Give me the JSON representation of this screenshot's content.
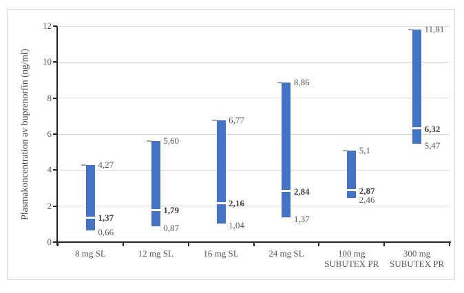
{
  "chart_data": {
    "type": "bar",
    "subtype": "floating-range-bars-min-median-max",
    "title": "",
    "xlabel": "",
    "ylabel": "Plasmakoncentration av buprenorfin (ng/ml)",
    "ylim": [
      0,
      12
    ],
    "yticks": [
      0,
      2,
      4,
      6,
      8,
      10,
      12
    ],
    "ytick_labels": [
      "0",
      "2",
      "4",
      "6",
      "8",
      "10",
      "12"
    ],
    "grid": "horizontal gridlines on",
    "legend_position": "none",
    "decimal_separator": ",",
    "categories": [
      "8 mg SL",
      "12 mg SL",
      "16 mg SL",
      "24 mg SL",
      "100 mg SUBUTEX PR",
      "300 mg SUBUTEX PR"
    ],
    "category_lines": [
      [
        "8 mg SL"
      ],
      [
        "12 mg SL"
      ],
      [
        "16 mg SL"
      ],
      [
        "24 mg SL"
      ],
      [
        "100 mg",
        "SUBUTEX PR"
      ],
      [
        "300 mg",
        "SUBUTEX PR"
      ]
    ],
    "bars": [
      {
        "category": "8 mg SL",
        "min": 0.66,
        "median": 1.37,
        "max": 4.27,
        "min_label": "0,66",
        "median_label": "1,37",
        "max_label": "4,27"
      },
      {
        "category": "12 mg SL",
        "min": 0.87,
        "median": 1.79,
        "max": 5.6,
        "min_label": "0,87",
        "median_label": "1,79",
        "max_label": "5,60"
      },
      {
        "category": "16 mg SL",
        "min": 1.04,
        "median": 2.16,
        "max": 6.77,
        "min_label": "1,04",
        "median_label": "2,16",
        "max_label": "6,77"
      },
      {
        "category": "24 mg SL",
        "min": 1.37,
        "median": 2.84,
        "max": 8.86,
        "min_label": "1,37",
        "median_label": "2,84",
        "max_label": "8,86"
      },
      {
        "category": "100 mg SUBUTEX PR",
        "min": 2.46,
        "median": 2.87,
        "max": 5.1,
        "min_label": "2,46",
        "median_label": "2,87",
        "max_label": "5,1"
      },
      {
        "category": "300 mg SUBUTEX PR",
        "min": 5.47,
        "median": 6.32,
        "max": 11.81,
        "min_label": "5,47",
        "median_label": "6,32",
        "max_label": "11,81"
      }
    ],
    "colors": {
      "bar": "#4472C4",
      "median_marker": "#FFFFFF",
      "max_cap": "#A6A6A6",
      "gridline": "#D9D9D9",
      "axis": "#262626",
      "text": "#595959",
      "median_text": "#404040",
      "figure_border": "#D9D9D9",
      "background": "#FFFFFF"
    }
  }
}
